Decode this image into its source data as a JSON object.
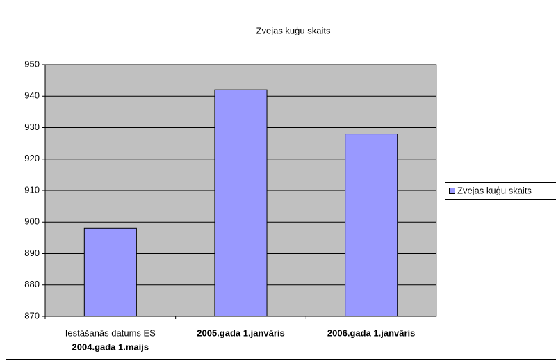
{
  "chart_data": {
    "type": "bar",
    "title": "Zvejas kuģu skaits",
    "categories": [
      [
        "Iestāšanās datums ES",
        "2004.gada 1.maijs"
      ],
      "2005.gada 1.janvāris",
      "2006.gada 1.janvāris"
    ],
    "series": [
      {
        "name": "Zvejas kuģu skaits",
        "color": "#9999ff",
        "values": [
          898,
          942,
          928
        ]
      }
    ],
    "ylim": [
      870,
      950
    ],
    "yticks": [
      870,
      880,
      890,
      900,
      910,
      920,
      930,
      940,
      950
    ],
    "grid": true,
    "legend": "right"
  }
}
